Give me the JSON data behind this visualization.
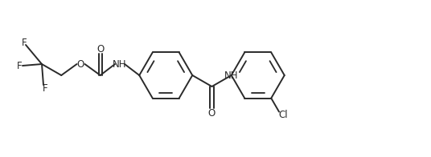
{
  "background_color": "#ffffff",
  "line_color": "#2a2a2a",
  "line_width": 1.4,
  "font_size": 8.5,
  "fig_width": 5.36,
  "fig_height": 1.96,
  "dpi": 100,
  "xlim": [
    0,
    536
  ],
  "ylim": [
    0,
    196
  ]
}
